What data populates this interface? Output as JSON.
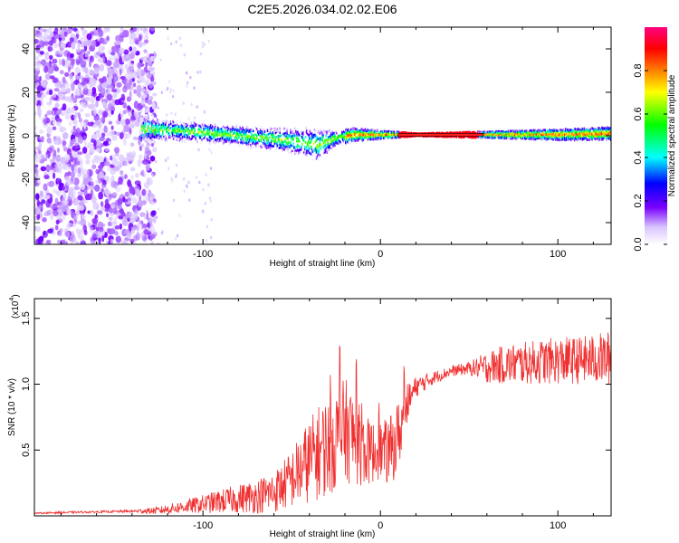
{
  "chart_data": [
    {
      "type": "heatmap",
      "title": "C2E5.2026.034.02.02.E06",
      "xlabel": "Height of straight line (km)",
      "ylabel": "Frequency (Hz)",
      "xlim": [
        -195,
        130
      ],
      "ylim": [
        -50,
        50
      ],
      "x_ticks": [
        -100,
        0,
        100
      ],
      "x_tick_labels": [
        "-100",
        "0",
        "100"
      ],
      "y_ticks": [
        -40,
        -20,
        0,
        20,
        40
      ],
      "y_tick_labels": [
        "-40",
        "-20",
        "0",
        "20",
        "40"
      ],
      "colorbar": {
        "label": "Normalized spectral amplitude",
        "range": [
          0,
          1
        ],
        "ticks": [
          0,
          0.2,
          0.4,
          0.6,
          0.8
        ],
        "tick_labels": [
          "0.0",
          "0.2",
          "0.4",
          "0.6",
          "0.8"
        ],
        "colors": [
          "#ffffff",
          "#c9a6ff",
          "#7a00ff",
          "#0000ff",
          "#00ffff",
          "#00ff00",
          "#ffff00",
          "#ff8000",
          "#ff0000",
          "#ff00ff"
        ]
      },
      "ridge": {
        "x": [
          -135,
          -120,
          -100,
          -80,
          -60,
          -45,
          -35,
          -25,
          -15,
          0,
          20,
          60,
          100,
          130
        ],
        "y": [
          3,
          2.5,
          1.5,
          0,
          -1.5,
          -3,
          -4,
          -1,
          0.5,
          0.5,
          0.5,
          0.5,
          0.5,
          1
        ],
        "spread": [
          7,
          5,
          5,
          5,
          6,
          7,
          8,
          4,
          3,
          2,
          0.6,
          1.5,
          2.5,
          3
        ]
      },
      "noise_region_x": [
        -195,
        -135
      ]
    },
    {
      "type": "line",
      "xlabel": "Height of straight line (km)",
      "ylabel": "SNR (10 * v/v)",
      "y_scale_label": "(x10",
      "y_scale_exp": "4",
      "y_scale_close": ")",
      "xlim": [
        -195,
        130
      ],
      "ylim": [
        0,
        16500
      ],
      "x_ticks": [
        -100,
        0,
        100
      ],
      "x_tick_labels": [
        "-100",
        "0",
        "100"
      ],
      "y_ticks": [
        5000,
        10000,
        15000
      ],
      "y_tick_labels": [
        "0.5",
        "1.0",
        "1.5"
      ],
      "color": "#f03030",
      "series": [
        {
          "name": "SNR",
          "x": [
            -195,
            -180,
            -160,
            -140,
            -125,
            -110,
            -100,
            -90,
            -80,
            -70,
            -60,
            -50,
            -45,
            -40,
            -35,
            -30,
            -25,
            -20,
            -15,
            -10,
            -5,
            0,
            5,
            10,
            15,
            20,
            30,
            40,
            50,
            60,
            70,
            80,
            90,
            100,
            110,
            120,
            130
          ],
          "y": [
            200,
            250,
            300,
            350,
            400,
            700,
            900,
            1100,
            1300,
            1500,
            1800,
            2800,
            3500,
            4200,
            4800,
            5300,
            5800,
            6500,
            6000,
            5000,
            4800,
            5000,
            4800,
            6000,
            8500,
            9800,
            10500,
            11000,
            11200,
            11300,
            11500,
            11600,
            11700,
            11800,
            11800,
            11900,
            12000
          ],
          "noise_amp": [
            50,
            80,
            80,
            100,
            300,
            500,
            700,
            900,
            1100,
            1300,
            1600,
            2200,
            2800,
            3200,
            3600,
            3800,
            3900,
            4000,
            3600,
            2800,
            2400,
            2200,
            2600,
            2800,
            1500,
            800,
            500,
            400,
            500,
            1200,
            1500,
            1600,
            1700,
            1800,
            1800,
            1900,
            2100
          ]
        }
      ]
    }
  ]
}
